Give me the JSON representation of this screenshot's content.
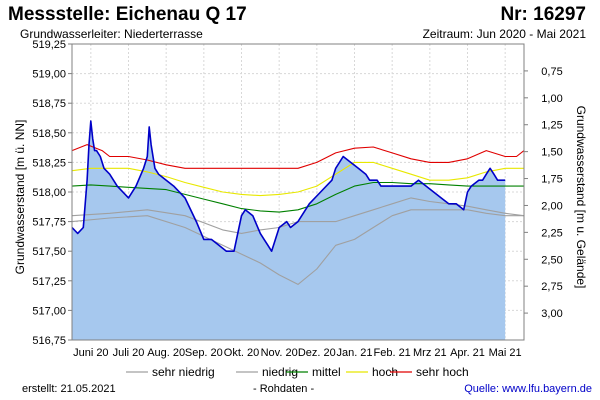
{
  "header": {
    "title": "Messstelle: Eichenau Q 17",
    "number": "Nr: 16297",
    "aquifer": "Grundwasserleiter:   Niederterrasse",
    "period": "Zeitraum: Jun 2020 - Mai 2021"
  },
  "footer": {
    "created": "erstellt:  21.05.2021",
    "raw_data": "- Rohdaten -",
    "source": "Quelle:  www.lfu.bayern.de"
  },
  "colors": {
    "fill": "#a6c8ee",
    "measured": "#0000c8",
    "very_low": "#a0a0a0",
    "low": "#a0a0a0",
    "mean": "#008000",
    "high": "#e8e800",
    "very_high": "#e00000"
  },
  "chart_data": {
    "type": "line",
    "title": "Messstelle: Eichenau Q 17",
    "ylabel": "Grundwasserstand [m ü. NN]",
    "y2label": "Grundwasserstand [m u. Gelände]",
    "ylim": [
      516.75,
      519.25
    ],
    "y2lim": [
      3.25,
      0.5
    ],
    "yticks": [
      "516,75",
      "517,00",
      "517,25",
      "517,50",
      "517,75",
      "518,00",
      "518,25",
      "518,50",
      "518,75",
      "519,00",
      "519,25"
    ],
    "y2ticks": [
      "0,75",
      "1,00",
      "1,25",
      "1,50",
      "1,75",
      "2,00",
      "2,25",
      "2,50",
      "2,75",
      "3,00"
    ],
    "xlim": [
      0,
      12
    ],
    "xticks": [
      "Juni 20",
      "Juli 20",
      "Aug. 20",
      "Sep. 20",
      "Okt. 20",
      "Nov. 20",
      "Dez. 20",
      "Jan. 21",
      "Feb. 21",
      "Mrz 21",
      "Apr. 21",
      "Mai 21"
    ],
    "legend": [
      "sehr niedrig",
      "niedrig",
      "mittel",
      "hoch",
      "sehr hoch"
    ],
    "legend_position": "bottom",
    "series": [
      {
        "name": "Messwert",
        "role": "measured",
        "x": [
          0.0,
          0.15,
          0.3,
          0.4,
          0.45,
          0.5,
          0.55,
          0.6,
          0.65,
          0.75,
          0.85,
          1.0,
          1.2,
          1.5,
          1.7,
          1.9,
          2.0,
          2.05,
          2.1,
          2.15,
          2.2,
          2.3,
          2.5,
          2.7,
          3.0,
          3.3,
          3.5,
          3.7,
          3.9,
          4.1,
          4.3,
          4.5,
          4.6,
          4.8,
          5.0,
          5.1,
          5.2,
          5.3,
          5.5,
          5.7,
          5.8,
          6.0,
          6.3,
          6.6,
          6.9,
          7.0,
          7.2,
          7.4,
          7.6,
          7.8,
          7.9,
          8.0,
          8.1,
          8.2,
          8.3,
          8.5,
          8.8,
          9.0,
          9.2,
          9.4,
          9.6,
          9.8,
          10.0,
          10.2,
          10.4,
          10.5,
          10.6,
          10.8,
          10.9,
          11.0,
          11.1,
          11.2,
          11.3,
          11.4,
          11.5
        ],
        "values": [
          517.7,
          517.65,
          517.7,
          518.1,
          518.4,
          518.6,
          518.45,
          518.35,
          518.35,
          518.3,
          518.2,
          518.15,
          518.05,
          517.95,
          518.05,
          518.2,
          518.3,
          518.55,
          518.4,
          518.3,
          518.2,
          518.15,
          518.1,
          518.05,
          517.95,
          517.75,
          517.6,
          517.6,
          517.55,
          517.5,
          517.5,
          517.8,
          517.85,
          517.8,
          517.65,
          517.6,
          517.55,
          517.5,
          517.7,
          517.75,
          517.7,
          517.75,
          517.9,
          518.0,
          518.1,
          518.2,
          518.3,
          518.25,
          518.2,
          518.15,
          518.1,
          518.1,
          518.1,
          518.05,
          518.05,
          518.05,
          518.05,
          518.05,
          518.1,
          518.05,
          518.0,
          517.95,
          517.9,
          517.9,
          517.85,
          518.0,
          518.05,
          518.1,
          518.1,
          518.15,
          518.2,
          518.15,
          518.1,
          518.1,
          518.1
        ]
      },
      {
        "name": "sehr niedrig",
        "role": "very_low",
        "x": [
          0,
          1,
          2,
          3,
          4,
          5,
          5.5,
          6,
          6.5,
          7,
          7.5,
          8,
          8.5,
          9,
          9.5,
          10,
          10.5,
          11,
          11.5,
          12
        ],
        "values": [
          517.75,
          517.78,
          517.8,
          517.7,
          517.55,
          517.4,
          517.3,
          517.22,
          517.35,
          517.55,
          517.6,
          517.7,
          517.8,
          517.85,
          517.85,
          517.85,
          517.85,
          517.82,
          517.8,
          517.8
        ]
      },
      {
        "name": "niedrig",
        "role": "low",
        "x": [
          0,
          1,
          2,
          3,
          4,
          4.5,
          5,
          5.5,
          6,
          6.5,
          7,
          7.5,
          8,
          8.5,
          9,
          9.5,
          10,
          10.5,
          11,
          11.5,
          12
        ],
        "values": [
          517.8,
          517.82,
          517.85,
          517.8,
          517.68,
          517.65,
          517.68,
          517.7,
          517.75,
          517.75,
          517.75,
          517.8,
          517.85,
          517.9,
          517.95,
          517.92,
          517.9,
          517.88,
          517.85,
          517.82,
          517.8
        ]
      },
      {
        "name": "mittel",
        "role": "mean",
        "x": [
          0,
          0.5,
          1,
          1.5,
          2,
          2.5,
          3,
          3.5,
          4,
          4.5,
          5,
          5.5,
          6,
          6.5,
          7,
          7.5,
          8,
          8.5,
          9,
          9.5,
          10,
          10.5,
          11,
          11.5,
          12
        ],
        "values": [
          518.05,
          518.06,
          518.05,
          518.04,
          518.03,
          518.02,
          517.98,
          517.94,
          517.9,
          517.86,
          517.84,
          517.83,
          517.85,
          517.9,
          517.98,
          518.05,
          518.08,
          518.08,
          518.07,
          518.07,
          518.06,
          518.05,
          518.05,
          518.05,
          518.05
        ]
      },
      {
        "name": "hoch",
        "role": "high",
        "x": [
          0,
          0.5,
          1,
          1.5,
          2,
          2.5,
          3,
          3.5,
          4,
          4.5,
          5,
          5.5,
          6,
          6.5,
          7,
          7.5,
          8,
          8.5,
          9,
          9.5,
          10,
          10.5,
          11,
          11.5,
          12
        ],
        "values": [
          518.18,
          518.2,
          518.2,
          518.2,
          518.17,
          518.13,
          518.08,
          518.04,
          518.0,
          517.98,
          517.97,
          517.98,
          518.0,
          518.05,
          518.15,
          518.25,
          518.25,
          518.2,
          518.15,
          518.1,
          518.1,
          518.12,
          518.17,
          518.2,
          518.2
        ]
      },
      {
        "name": "sehr hoch",
        "role": "very_high",
        "x": [
          0,
          0.4,
          0.8,
          1,
          1.5,
          2,
          2.5,
          3,
          3.5,
          4,
          4.5,
          5,
          5.5,
          6,
          6.5,
          7,
          7.5,
          8,
          8.5,
          9,
          9.5,
          10,
          10.5,
          11,
          11.5,
          11.8,
          12
        ],
        "values": [
          518.35,
          518.4,
          518.35,
          518.3,
          518.3,
          518.27,
          518.23,
          518.2,
          518.2,
          518.2,
          518.2,
          518.2,
          518.2,
          518.2,
          518.25,
          518.33,
          518.37,
          518.38,
          518.33,
          518.28,
          518.25,
          518.25,
          518.28,
          518.35,
          518.3,
          518.3,
          518.35
        ]
      }
    ]
  }
}
